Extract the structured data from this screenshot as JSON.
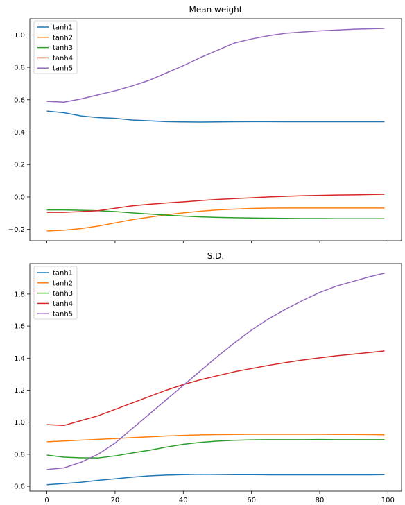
{
  "chart_data": [
    {
      "type": "line",
      "title": "Mean weight",
      "xlabel": "",
      "ylabel": "",
      "xlim": [
        -5,
        104
      ],
      "ylim": [
        -0.27,
        1.1
      ],
      "xticks": [
        0,
        20,
        40,
        60,
        80,
        100
      ],
      "xtick_labels_visible": false,
      "yticks": [
        -0.2,
        0.0,
        0.2,
        0.4,
        0.6,
        0.8,
        1.0
      ],
      "ytick_labels": [
        "−0.2",
        "0.0",
        "0.2",
        "0.4",
        "0.6",
        "0.8",
        "1.0"
      ],
      "legend_position": "upper-left",
      "x": [
        0,
        5,
        10,
        15,
        20,
        25,
        30,
        35,
        40,
        45,
        50,
        55,
        60,
        65,
        70,
        75,
        80,
        85,
        90,
        95,
        99
      ],
      "series": [
        {
          "name": "tanh1",
          "color": "#1f77b4",
          "values": [
            0.53,
            0.52,
            0.5,
            0.49,
            0.485,
            0.475,
            0.47,
            0.465,
            0.463,
            0.462,
            0.463,
            0.464,
            0.465,
            0.465,
            0.464,
            0.464,
            0.464,
            0.464,
            0.464,
            0.464,
            0.464
          ]
        },
        {
          "name": "tanh2",
          "color": "#ff7f0e",
          "values": [
            -0.21,
            -0.205,
            -0.195,
            -0.18,
            -0.16,
            -0.14,
            -0.125,
            -0.11,
            -0.098,
            -0.088,
            -0.08,
            -0.075,
            -0.071,
            -0.069,
            -0.068,
            -0.068,
            -0.068,
            -0.068,
            -0.068,
            -0.068,
            -0.068
          ]
        },
        {
          "name": "tanh3",
          "color": "#2ca02c",
          "values": [
            -0.08,
            -0.08,
            -0.082,
            -0.085,
            -0.09,
            -0.098,
            -0.105,
            -0.112,
            -0.118,
            -0.123,
            -0.126,
            -0.128,
            -0.13,
            -0.131,
            -0.132,
            -0.133,
            -0.133,
            -0.134,
            -0.134,
            -0.134,
            -0.134
          ]
        },
        {
          "name": "tanh4",
          "color": "#d62728",
          "values": [
            -0.095,
            -0.095,
            -0.09,
            -0.085,
            -0.07,
            -0.055,
            -0.045,
            -0.037,
            -0.03,
            -0.022,
            -0.015,
            -0.01,
            -0.005,
            0.0,
            0.004,
            0.008,
            0.01,
            0.012,
            0.013,
            0.015,
            0.017
          ]
        },
        {
          "name": "tanh5",
          "color": "#9467bd",
          "values": [
            0.59,
            0.585,
            0.605,
            0.63,
            0.655,
            0.685,
            0.72,
            0.765,
            0.81,
            0.86,
            0.905,
            0.95,
            0.975,
            0.995,
            1.01,
            1.018,
            1.025,
            1.03,
            1.035,
            1.038,
            1.04
          ]
        }
      ]
    },
    {
      "type": "line",
      "title": "S.D.",
      "xlabel": "",
      "ylabel": "",
      "xlim": [
        -5,
        104
      ],
      "ylim": [
        0.57,
        1.99
      ],
      "xticks": [
        0,
        20,
        40,
        60,
        80,
        100
      ],
      "xtick_labels": [
        "0",
        "20",
        "40",
        "60",
        "80",
        "100"
      ],
      "yticks": [
        0.6,
        0.8,
        1.0,
        1.2,
        1.4,
        1.6,
        1.8
      ],
      "ytick_labels": [
        "0.6",
        "0.8",
        "1.0",
        "1.2",
        "1.4",
        "1.6",
        "1.8"
      ],
      "legend_position": "upper-left",
      "x": [
        0,
        5,
        10,
        15,
        20,
        25,
        30,
        35,
        40,
        45,
        50,
        55,
        60,
        65,
        70,
        75,
        80,
        85,
        90,
        95,
        99
      ],
      "series": [
        {
          "name": "tanh1",
          "color": "#1f77b4",
          "values": [
            0.61,
            0.617,
            0.625,
            0.637,
            0.647,
            0.657,
            0.665,
            0.67,
            0.673,
            0.675,
            0.674,
            0.673,
            0.673,
            0.672,
            0.672,
            0.672,
            0.672,
            0.672,
            0.672,
            0.672,
            0.673
          ]
        },
        {
          "name": "tanh2",
          "color": "#ff7f0e",
          "values": [
            0.878,
            0.883,
            0.888,
            0.893,
            0.898,
            0.904,
            0.909,
            0.914,
            0.918,
            0.921,
            0.923,
            0.924,
            0.925,
            0.925,
            0.925,
            0.925,
            0.925,
            0.924,
            0.924,
            0.923,
            0.922
          ]
        },
        {
          "name": "tanh3",
          "color": "#2ca02c",
          "values": [
            0.795,
            0.782,
            0.778,
            0.777,
            0.79,
            0.808,
            0.825,
            0.845,
            0.862,
            0.874,
            0.882,
            0.887,
            0.89,
            0.891,
            0.891,
            0.891,
            0.892,
            0.891,
            0.891,
            0.891,
            0.891
          ]
        },
        {
          "name": "tanh4",
          "color": "#d62728",
          "values": [
            0.985,
            0.98,
            1.01,
            1.04,
            1.08,
            1.12,
            1.16,
            1.2,
            1.235,
            1.265,
            1.29,
            1.315,
            1.335,
            1.355,
            1.372,
            1.388,
            1.402,
            1.415,
            1.425,
            1.436,
            1.445
          ]
        },
        {
          "name": "tanh5",
          "color": "#9467bd",
          "values": [
            0.705,
            0.715,
            0.75,
            0.8,
            0.87,
            0.96,
            1.05,
            1.14,
            1.23,
            1.32,
            1.41,
            1.495,
            1.575,
            1.645,
            1.705,
            1.76,
            1.81,
            1.85,
            1.88,
            1.91,
            1.93
          ]
        }
      ]
    }
  ]
}
